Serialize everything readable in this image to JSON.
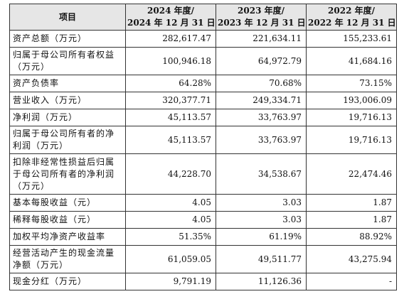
{
  "table": {
    "headers": [
      {
        "line1": "项目",
        "line2": ""
      },
      {
        "line1": "2024 年度/",
        "line2": "2024 年 12 月 31 日"
      },
      {
        "line1": "2023 年度/",
        "line2": "2023 年 12 月 31 日"
      },
      {
        "line1": "2022 年度/",
        "line2": "2022 年 12 月 31 日"
      }
    ],
    "rows": [
      {
        "label": "资产总额（万元）",
        "v2024": "282,617.47",
        "v2023": "221,634.11",
        "v2022": "155,233.61"
      },
      {
        "label": "归属于母公司所有者权益（万元）",
        "v2024": "100,946.18",
        "v2023": "64,972.79",
        "v2022": "41,684.16"
      },
      {
        "label": "资产负债率",
        "v2024": "64.28%",
        "v2023": "70.68%",
        "v2022": "73.15%"
      },
      {
        "label": "营业收入（万元）",
        "v2024": "320,377.71",
        "v2023": "249,334.71",
        "v2022": "193,006.09"
      },
      {
        "label": "净利润（万元）",
        "v2024": "45,113.57",
        "v2023": "33,763.97",
        "v2022": "19,716.13"
      },
      {
        "label": "归属于母公司所有者的净利润（万元）",
        "v2024": "45,113.57",
        "v2023": "33,763.97",
        "v2022": "19,716.13"
      },
      {
        "label": "扣除非经常性损益后归属于母公司所有者的净利润（万元）",
        "v2024": "44,228.70",
        "v2023": "34,538.67",
        "v2022": "22,474.46"
      },
      {
        "label": "基本每股收益（元）",
        "v2024": "4.05",
        "v2023": "3.03",
        "v2022": "1.87"
      },
      {
        "label": "稀释每股收益（元）",
        "v2024": "4.05",
        "v2023": "3.03",
        "v2022": "1.87"
      },
      {
        "label": "加权平均净资产收益率",
        "v2024": "51.35%",
        "v2023": "61.19%",
        "v2022": "88.92%"
      },
      {
        "label": "经营活动产生的现金流量净额（万元）",
        "v2024": "61,059.05",
        "v2023": "49,511.77",
        "v2022": "43,275.94"
      },
      {
        "label": "现金分红（万元）",
        "v2024": "9,791.19",
        "v2023": "11,126.36",
        "v2022": "-"
      }
    ]
  }
}
